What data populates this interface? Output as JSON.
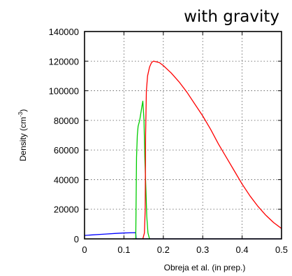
{
  "chart_data": {
    "type": "line",
    "title": "with gravity",
    "ylabel": "Density (cm",
    "ylabel_exp": "-3",
    "ylabel_close": ")",
    "caption": "Obreja et al. (in prep.)",
    "xlim": [
      0,
      0.5
    ],
    "ylim": [
      0,
      140000
    ],
    "xticks": [
      0,
      0.1,
      0.2,
      0.3,
      0.4,
      0.5
    ],
    "xtick_labels": [
      "0",
      "0.1",
      "0.2",
      "0.3",
      "0.4",
      "0.5"
    ],
    "yticks": [
      0,
      20000,
      40000,
      60000,
      80000,
      100000,
      120000,
      140000
    ],
    "ytick_labels": [
      "0",
      "20000",
      "40000",
      "60000",
      "80000",
      "100000",
      "120000",
      "140000"
    ],
    "grid": true,
    "series": [
      {
        "color": "#0000ff",
        "points": [
          [
            0.0,
            2300
          ],
          [
            0.02,
            2700
          ],
          [
            0.05,
            3200
          ],
          [
            0.08,
            3700
          ],
          [
            0.1,
            4000
          ],
          [
            0.13,
            4200
          ],
          [
            0.131,
            0
          ],
          [
            0.5,
            0
          ]
        ]
      },
      {
        "color": "#00cc00",
        "points": [
          [
            0.122,
            0
          ],
          [
            0.13,
            0
          ],
          [
            0.132,
            55000
          ],
          [
            0.134,
            70000
          ],
          [
            0.136,
            76000
          ],
          [
            0.14,
            80000
          ],
          [
            0.143,
            85000
          ],
          [
            0.146,
            90000
          ],
          [
            0.148,
            93000
          ],
          [
            0.151,
            80000
          ],
          [
            0.153,
            55000
          ],
          [
            0.156,
            32000
          ],
          [
            0.158,
            15000
          ],
          [
            0.161,
            4000
          ],
          [
            0.165,
            0
          ]
        ]
      },
      {
        "color": "#ff0000",
        "points": [
          [
            0.148,
            0
          ],
          [
            0.152,
            4000
          ],
          [
            0.154,
            20000
          ],
          [
            0.155,
            70000
          ],
          [
            0.157,
            100000
          ],
          [
            0.16,
            110000
          ],
          [
            0.165,
            116000
          ],
          [
            0.17,
            119000
          ],
          [
            0.175,
            120000
          ],
          [
            0.19,
            119000
          ],
          [
            0.2,
            117000
          ],
          [
            0.22,
            112000
          ],
          [
            0.24,
            106000
          ],
          [
            0.26,
            99000
          ],
          [
            0.28,
            91000
          ],
          [
            0.3,
            83000
          ],
          [
            0.32,
            74000
          ],
          [
            0.34,
            64000
          ],
          [
            0.36,
            55000
          ],
          [
            0.38,
            46000
          ],
          [
            0.4,
            37000
          ],
          [
            0.42,
            29000
          ],
          [
            0.44,
            22000
          ],
          [
            0.46,
            16000
          ],
          [
            0.48,
            11000
          ],
          [
            0.5,
            7000
          ]
        ]
      }
    ]
  }
}
